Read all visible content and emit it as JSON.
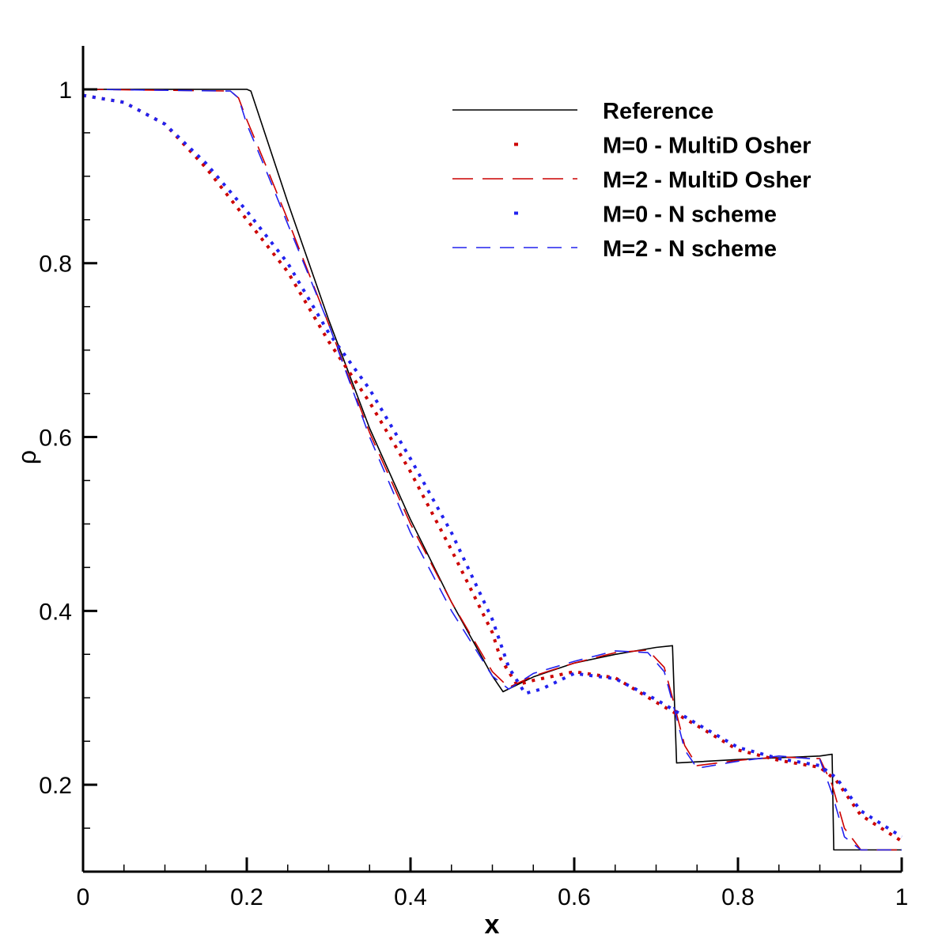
{
  "chart_data": {
    "type": "line",
    "title": "",
    "xlabel": "x",
    "ylabel": "ρ",
    "xlim": [
      0,
      1
    ],
    "ylim": [
      0.1,
      1.05
    ],
    "grid": false,
    "legend_position": "top-right",
    "x_ticks": [
      {
        "value": 0,
        "label": "0"
      },
      {
        "value": 0.2,
        "label": "0.2"
      },
      {
        "value": 0.4,
        "label": "0.4"
      },
      {
        "value": 0.6,
        "label": "0.6"
      },
      {
        "value": 0.8,
        "label": "0.8"
      },
      {
        "value": 1,
        "label": "1"
      }
    ],
    "y_ticks": [
      {
        "value": 0.2,
        "label": "0.2"
      },
      {
        "value": 0.4,
        "label": "0.4"
      },
      {
        "value": 0.6,
        "label": "0.6"
      },
      {
        "value": 0.8,
        "label": "0.8"
      },
      {
        "value": 1,
        "label": "1"
      }
    ],
    "series": [
      {
        "name": "Reference",
        "style": "solid",
        "color": "#000000",
        "x": [
          0,
          0.2,
          0.205,
          0.25,
          0.3,
          0.35,
          0.4,
          0.45,
          0.5,
          0.513,
          0.55,
          0.6,
          0.65,
          0.7,
          0.72,
          0.725,
          0.8,
          0.85,
          0.9,
          0.915,
          0.917,
          1.0
        ],
        "y": [
          1.0,
          1.0,
          0.998,
          0.87,
          0.735,
          0.61,
          0.505,
          0.41,
          0.325,
          0.307,
          0.324,
          0.34,
          0.35,
          0.358,
          0.36,
          0.225,
          0.229,
          0.231,
          0.233,
          0.235,
          0.125,
          0.125
        ]
      },
      {
        "name": "M=0 - MultiD Osher",
        "style": "dotted",
        "color": "#cc0000",
        "x": [
          0,
          0.05,
          0.1,
          0.15,
          0.2,
          0.25,
          0.3,
          0.35,
          0.4,
          0.45,
          0.5,
          0.51,
          0.53,
          0.55,
          0.6,
          0.65,
          0.7,
          0.75,
          0.8,
          0.85,
          0.9,
          0.92,
          0.95,
          1.0
        ],
        "y": [
          0.993,
          0.985,
          0.96,
          0.91,
          0.85,
          0.79,
          0.71,
          0.64,
          0.56,
          0.47,
          0.375,
          0.345,
          0.315,
          0.32,
          0.33,
          0.323,
          0.295,
          0.268,
          0.24,
          0.228,
          0.22,
          0.205,
          0.165,
          0.135
        ]
      },
      {
        "name": "M=2 - MultiD Osher",
        "style": "longdash",
        "color": "#cc0000",
        "x": [
          0,
          0.18,
          0.19,
          0.2,
          0.22,
          0.25,
          0.3,
          0.35,
          0.4,
          0.45,
          0.5,
          0.52,
          0.55,
          0.6,
          0.65,
          0.69,
          0.71,
          0.72,
          0.735,
          0.75,
          0.8,
          0.85,
          0.9,
          0.915,
          0.93,
          0.95,
          1.0
        ],
        "y": [
          1.0,
          0.998,
          0.99,
          0.965,
          0.92,
          0.85,
          0.73,
          0.605,
          0.5,
          0.41,
          0.33,
          0.312,
          0.325,
          0.34,
          0.352,
          0.355,
          0.335,
          0.3,
          0.245,
          0.222,
          0.228,
          0.232,
          0.23,
          0.2,
          0.15,
          0.125,
          0.125
        ]
      },
      {
        "name": "M=0 - N scheme",
        "style": "dotted",
        "color": "#2222ee",
        "x": [
          0,
          0.05,
          0.1,
          0.15,
          0.2,
          0.25,
          0.3,
          0.35,
          0.4,
          0.45,
          0.5,
          0.52,
          0.54,
          0.56,
          0.6,
          0.65,
          0.7,
          0.75,
          0.8,
          0.85,
          0.9,
          0.92,
          0.95,
          1.0
        ],
        "y": [
          0.993,
          0.985,
          0.96,
          0.915,
          0.86,
          0.8,
          0.72,
          0.655,
          0.575,
          0.49,
          0.39,
          0.335,
          0.305,
          0.31,
          0.328,
          0.322,
          0.298,
          0.27,
          0.243,
          0.23,
          0.222,
          0.208,
          0.17,
          0.14
        ]
      },
      {
        "name": "M=2 - N scheme",
        "style": "dash",
        "color": "#2222ee",
        "x": [
          0,
          0.18,
          0.19,
          0.2,
          0.22,
          0.25,
          0.3,
          0.35,
          0.4,
          0.45,
          0.5,
          0.52,
          0.55,
          0.6,
          0.65,
          0.69,
          0.71,
          0.72,
          0.735,
          0.75,
          0.8,
          0.85,
          0.9,
          0.915,
          0.93,
          0.95,
          1.0
        ],
        "y": [
          1.0,
          0.998,
          0.99,
          0.96,
          0.915,
          0.845,
          0.73,
          0.6,
          0.49,
          0.4,
          0.325,
          0.31,
          0.328,
          0.342,
          0.354,
          0.352,
          0.33,
          0.295,
          0.24,
          0.219,
          0.227,
          0.233,
          0.229,
          0.19,
          0.14,
          0.125,
          0.125
        ]
      }
    ]
  }
}
